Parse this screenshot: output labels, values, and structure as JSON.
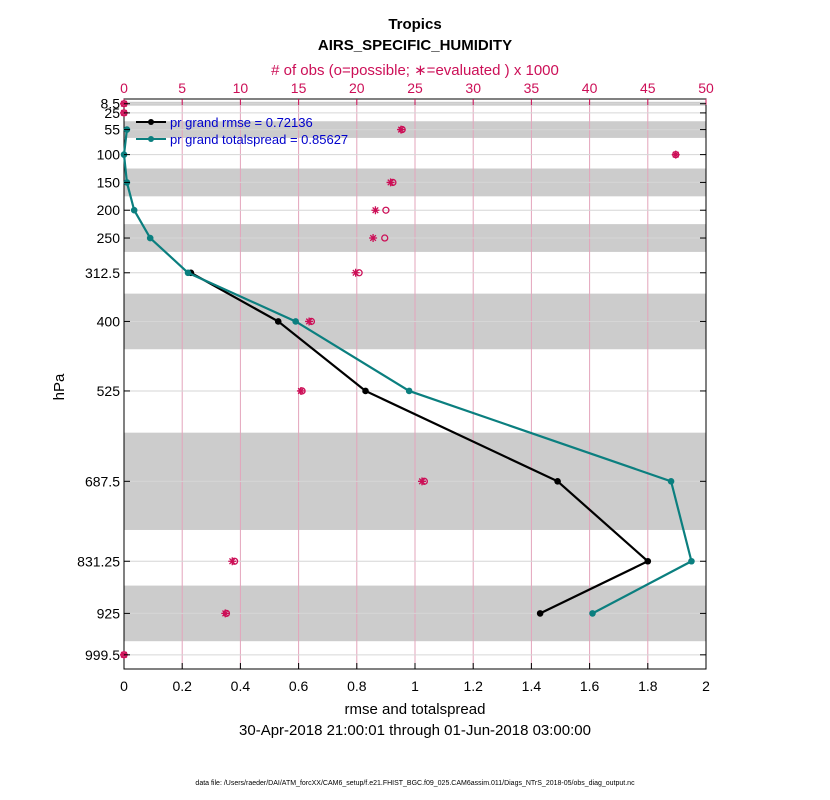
{
  "chart_data": {
    "type": "line",
    "title": "Tropics",
    "subtitle": "AIRS_SPECIFIC_HUMIDITY",
    "top_xlabel": "# of obs (o=possible; ∗=evaluated ) x 1000",
    "xlabel": "rmse and totalspread",
    "ylabel": "hPa",
    "date_range": "30-Apr-2018 21:00:01 through 01-Jun-2018 03:00:00",
    "footnote": "data file: /Users/raeder/DAI/ATM_forcXX/CAM6_setup/f.e21.FHIST_BGC.f09_025.CAM6assim.011/Diags_NTrS_2018-05/obs_diag_output.nc",
    "xlim": [
      0,
      2
    ],
    "top_xlim": [
      0,
      50
    ],
    "ylim": [
      1025,
      0
    ],
    "x_ticks": [
      0,
      0.2,
      0.4,
      0.6,
      0.8,
      1,
      1.2,
      1.4,
      1.6,
      1.8,
      2
    ],
    "x_tick_labels": [
      "0",
      "0.2",
      "0.4",
      "0.6",
      "0.8",
      "1",
      "1.2",
      "1.4",
      "1.6",
      "1.8",
      "2"
    ],
    "top_ticks": [
      0,
      5,
      10,
      15,
      20,
      25,
      30,
      35,
      40,
      45,
      50
    ],
    "top_tick_labels": [
      "0",
      "5",
      "10",
      "15",
      "20",
      "25",
      "30",
      "35",
      "40",
      "45",
      "50"
    ],
    "levels": [
      8.5,
      25,
      55,
      100,
      150,
      200,
      250,
      312.5,
      400,
      525,
      687.5,
      831.25,
      925,
      999.5
    ],
    "level_labels": [
      "8.5",
      "25",
      "55",
      "100",
      "150",
      "200",
      "250",
      "312.5",
      "400",
      "525",
      "687.5",
      "831.25",
      "925",
      "999.5"
    ],
    "bands": [
      [
        5,
        12
      ],
      [
        40,
        70
      ],
      [
        125,
        175
      ],
      [
        225,
        275
      ],
      [
        350,
        450
      ],
      [
        600,
        775
      ],
      [
        875,
        975
      ]
    ],
    "series": [
      {
        "name": "pr grand rmse = 0.72136",
        "color": "#000000",
        "levels": [
          312.5,
          400,
          525,
          687.5,
          831.25,
          925
        ],
        "values": [
          0.23,
          0.53,
          0.83,
          1.49,
          1.8,
          1.43
        ]
      },
      {
        "name": "pr grand totalspread = 0.85627",
        "color": "#0b7f7f",
        "levels": [
          55,
          100,
          150,
          200,
          250,
          312.5,
          400,
          525,
          687.5,
          831.25,
          925
        ],
        "values": [
          0.01,
          0.0,
          0.01,
          0.035,
          0.09,
          0.22,
          0.59,
          0.98,
          1.88,
          1.95,
          1.61
        ]
      }
    ],
    "obs_possible": {
      "levels": [
        8.5,
        25,
        55,
        100,
        150,
        200,
        250,
        312.5,
        400,
        525,
        687.5,
        831.25,
        925,
        999.5
      ],
      "values": [
        0.0,
        0.0,
        23.9,
        47.4,
        23.1,
        22.5,
        22.4,
        20.2,
        16.1,
        15.3,
        25.8,
        9.5,
        8.8,
        0.0
      ]
    },
    "obs_evaluated": {
      "levels": [
        8.5,
        25,
        55,
        100,
        150,
        200,
        250,
        312.5,
        400,
        525,
        687.5,
        831.25,
        925,
        999.5
      ],
      "values": [
        0.0,
        0.0,
        23.8,
        47.4,
        22.9,
        21.6,
        21.4,
        19.9,
        15.9,
        15.2,
        25.6,
        9.3,
        8.7,
        0.0
      ]
    }
  }
}
